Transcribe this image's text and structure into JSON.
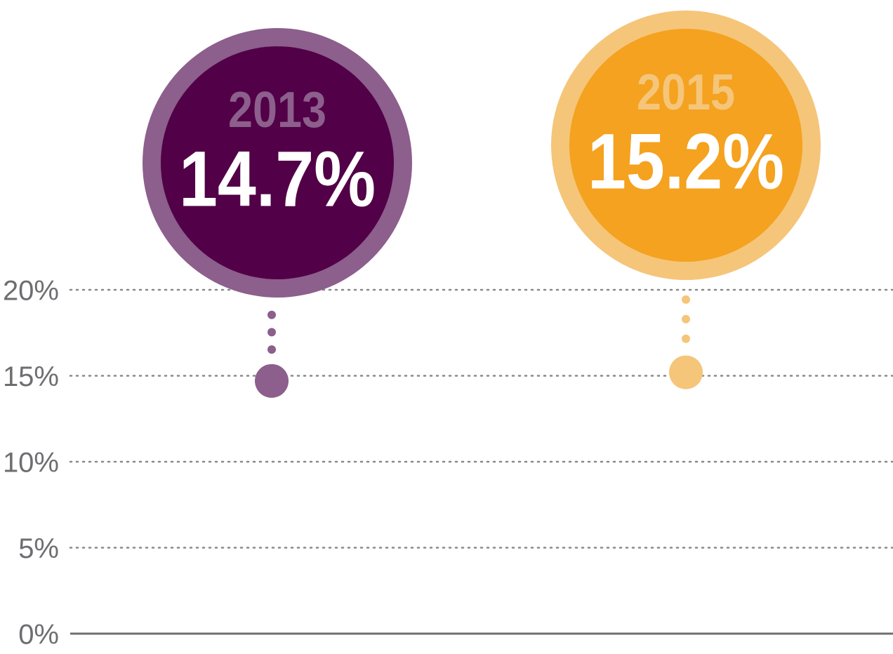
{
  "chart_data": {
    "type": "dot",
    "categories": [
      "2013",
      "2015"
    ],
    "values": [
      14.7,
      15.2
    ],
    "value_labels": [
      "14.7%",
      "15.2%"
    ],
    "colors": [
      "#8c5f8c",
      "#f5c57a"
    ],
    "bubble_colors": [
      "#520047",
      "#f4a21f"
    ],
    "ylim": [
      0,
      20
    ],
    "yticks": [
      {
        "value": 0,
        "label": "0%"
      },
      {
        "value": 5,
        "label": "5%"
      },
      {
        "value": 10,
        "label": "10%"
      },
      {
        "value": 15,
        "label": "15%"
      },
      {
        "value": 20,
        "label": "20%"
      }
    ],
    "grid": true
  }
}
